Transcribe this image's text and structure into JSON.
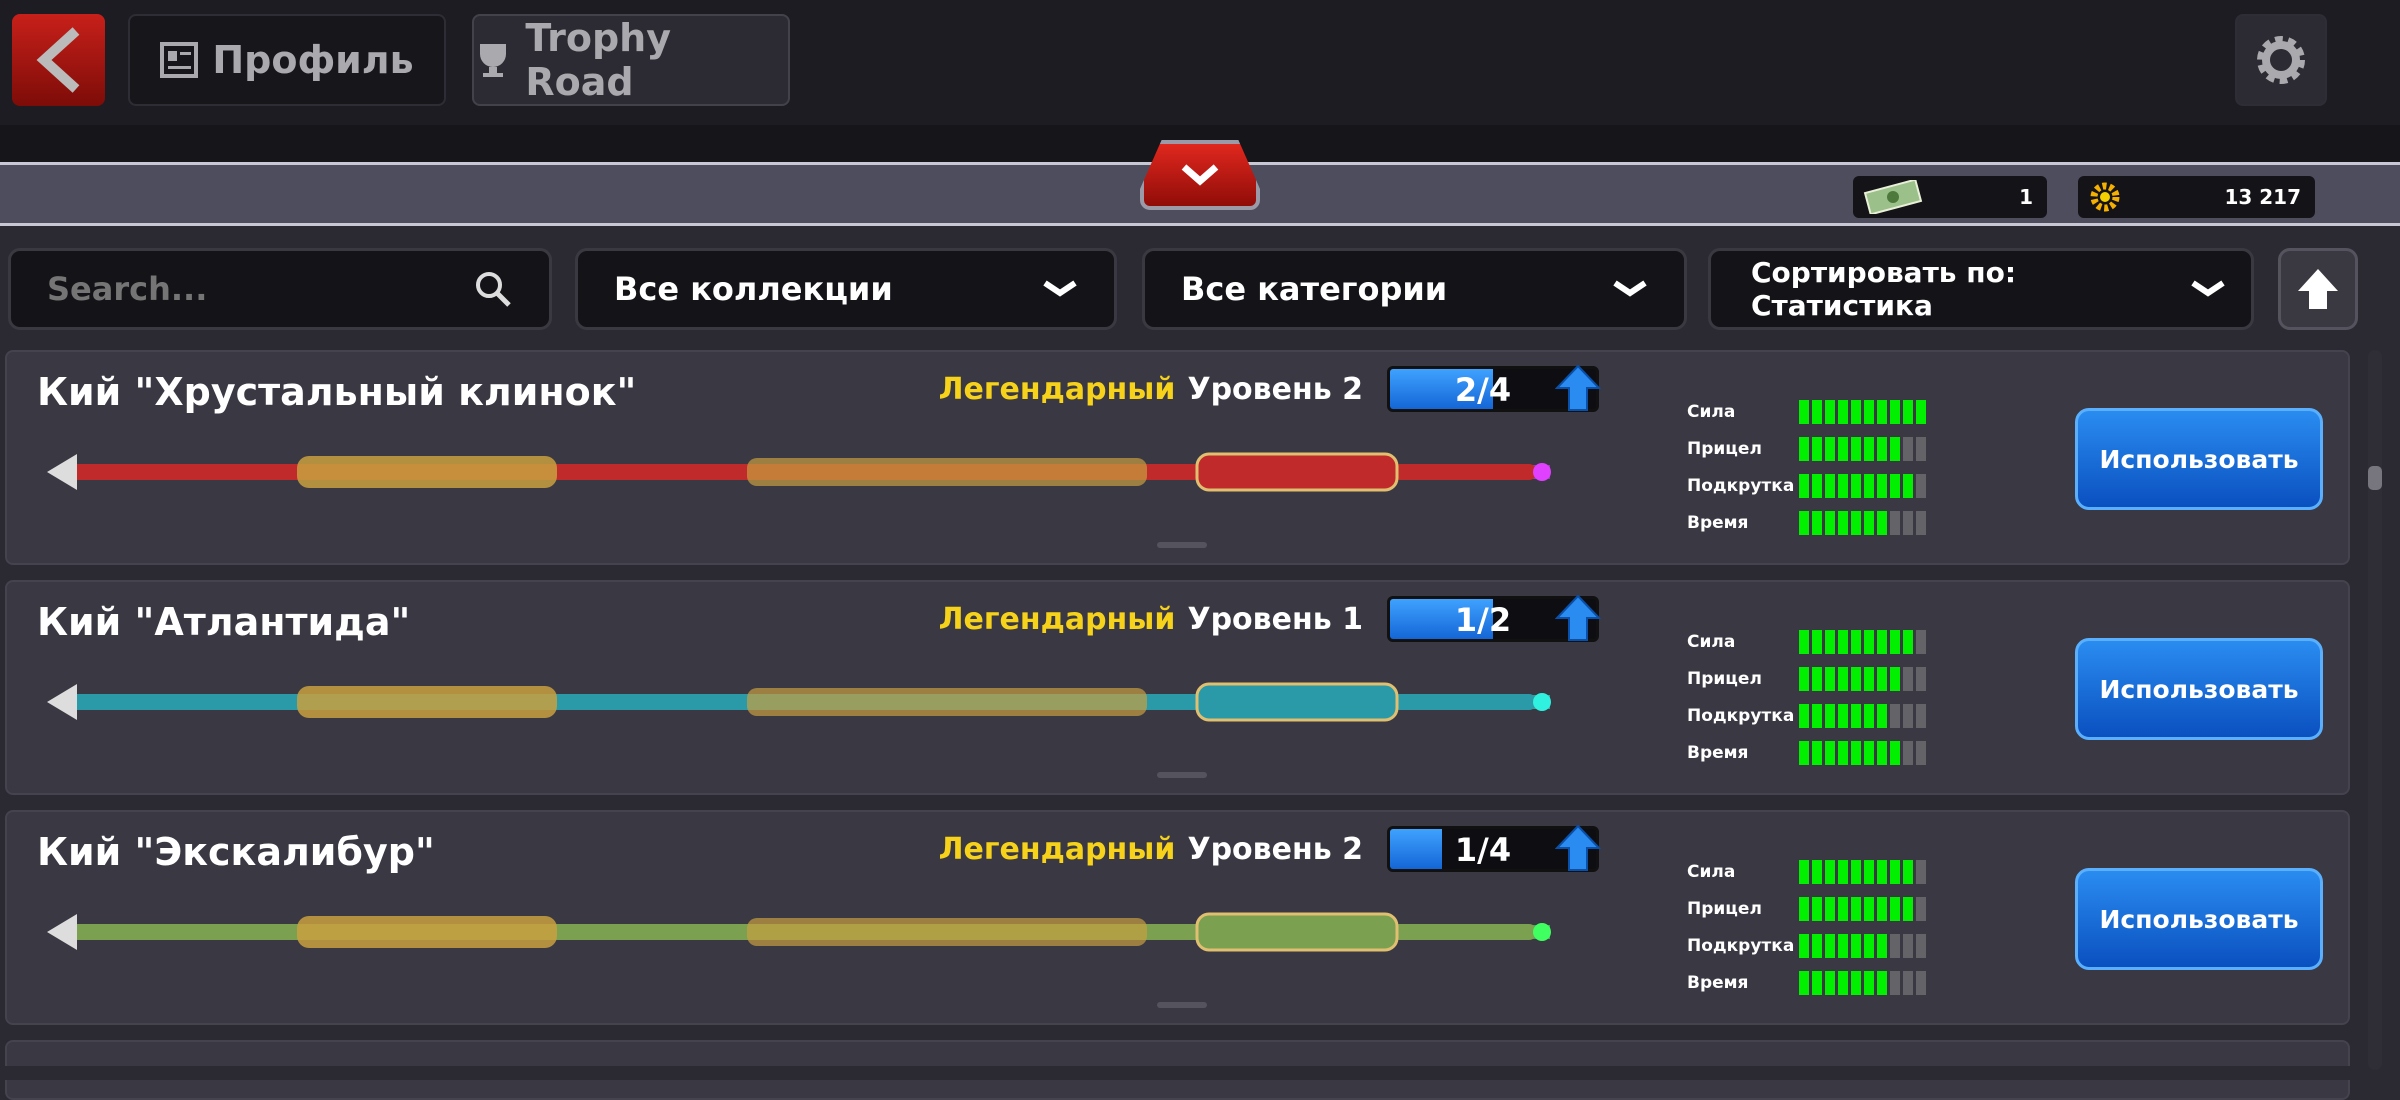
{
  "header": {
    "profile_label": "Профиль",
    "trophy_label": "Trophy Road"
  },
  "currency": {
    "cash": "1",
    "coins": "13 217"
  },
  "filters": {
    "search_placeholder": "Search...",
    "collections": "Все коллекции",
    "categories": "Все категории",
    "sort": "Сортировать по: Статистика"
  },
  "stat_labels": [
    "Сила",
    "Прицел",
    "Подкрутка",
    "Время"
  ],
  "cues": [
    {
      "name": "Кий \"Хрустальный клинок\"",
      "rarity": "Легендарный",
      "level": "Уровень 2",
      "progress": "2/4",
      "progress_fraction": 0.5,
      "stats": [
        10,
        8,
        9,
        7
      ],
      "glow": "#e040ff",
      "body": "#c02a2a",
      "use": "Использовать"
    },
    {
      "name": "Кий \"Атлантида\"",
      "rarity": "Легендарный",
      "level": "Уровень 1",
      "progress": "1/2",
      "progress_fraction": 0.5,
      "stats": [
        9,
        8,
        7,
        8
      ],
      "glow": "#30f0e0",
      "body": "#2a9aa8",
      "use": "Использовать"
    },
    {
      "name": "Кий \"Экскалибур\"",
      "rarity": "Легендарный",
      "level": "Уровень 2",
      "progress": "1/4",
      "progress_fraction": 0.25,
      "stats": [
        9,
        9,
        7,
        7
      ],
      "glow": "#40ff60",
      "body": "#7aa050",
      "use": "Использовать"
    }
  ],
  "colors": {
    "rarity": "#f6d21a",
    "stat_on": "#00f000",
    "use_button": "#1a6fe0",
    "back": "#c8201a"
  }
}
